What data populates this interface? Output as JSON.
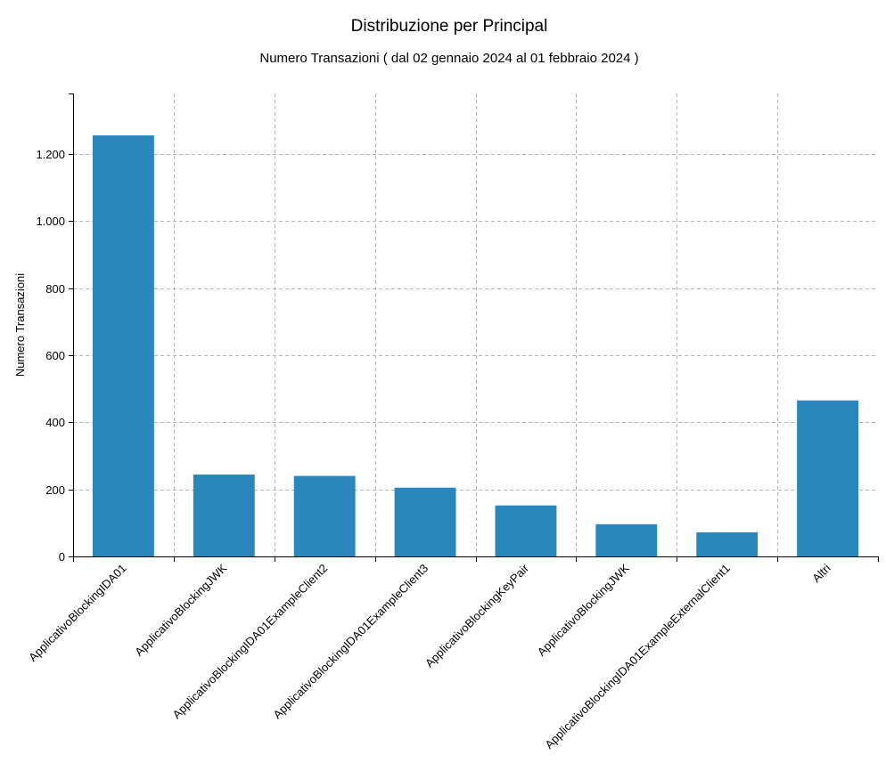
{
  "chart_data": {
    "type": "bar",
    "title": "Distribuzione per Principal",
    "subtitle": "Numero Transazioni ( dal 02 gennaio 2024 al 01 febbraio 2024 )",
    "xlabel": "",
    "ylabel": "Numero Transazioni",
    "categories": [
      "ApplicativoBlockingIDA01",
      "ApplicativoBlockingJWK",
      "ApplicativoBlockingIDA01ExampleClient2",
      "ApplicativoBlockingIDA01ExampleClient3",
      "ApplicativoBlockingKeyPair",
      "ApplicativoBlockingJWK",
      "ApplicativoBlockingIDA01ExampleExternalClient1",
      "Altri"
    ],
    "values": [
      1255,
      244,
      240,
      205,
      152,
      96,
      72,
      465
    ],
    "ylim": [
      0,
      1380
    ],
    "yticks": [
      0,
      200,
      400,
      600,
      800,
      1000,
      1200
    ],
    "ytick_labels": [
      "0",
      "200",
      "400",
      "600",
      "800",
      "1.000",
      "1.200"
    ],
    "grid": true,
    "bar_color": "#2a86bb"
  }
}
